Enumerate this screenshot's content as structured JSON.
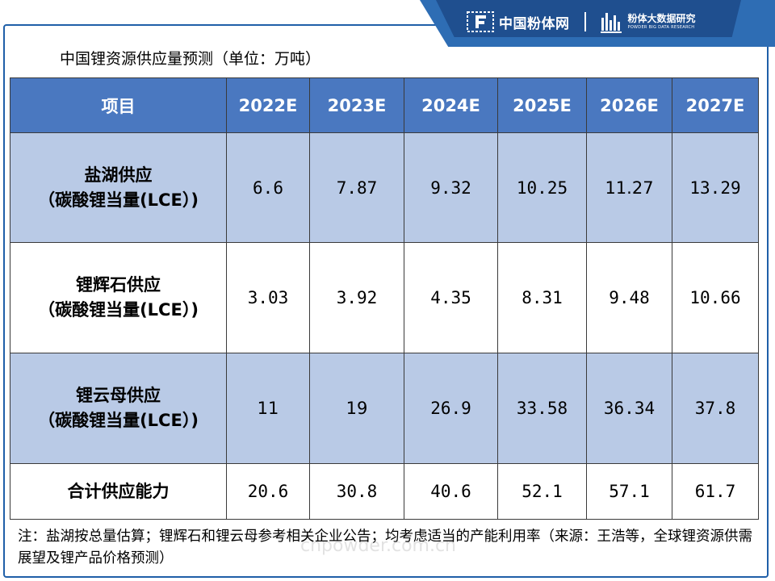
{
  "brand": {
    "logo1_text": "中国粉体网",
    "logo2_cn": "粉体大数据研究",
    "logo2_en": "POWDER BIG DATA RESEARCH"
  },
  "title": "中国锂资源供应量预测（单位：万吨）",
  "table": {
    "headers": [
      "项目",
      "2022E",
      "2023E",
      "2024E",
      "2025E",
      "2026E",
      "2027E"
    ],
    "rows": [
      {
        "label_line1": "盐湖供应",
        "label_line2": "（碳酸锂当量(LCE）)",
        "values": [
          "6.6",
          "7.87",
          "9.32",
          "10.25",
          "11.27",
          "13.29"
        ]
      },
      {
        "label_line1": "锂辉石供应",
        "label_line2": "（碳酸锂当量(LCE）)",
        "values": [
          "3.03",
          "3.92",
          "4.35",
          "8.31",
          "9.48",
          "10.66"
        ]
      },
      {
        "label_line1": "锂云母供应",
        "label_line2": "（碳酸锂当量(LCE）)",
        "values": [
          "11",
          "19",
          "26.9",
          "33.58",
          "36.34",
          "37.8"
        ]
      }
    ],
    "total": {
      "label": "合计供应能力",
      "values": [
        "20.6",
        "30.8",
        "40.6",
        "52.1",
        "57.1",
        "61.7"
      ]
    }
  },
  "watermark": "© cnpowder.com.cn",
  "watermark_small": "cnpowder.com.cn",
  "note": "注：盐湖按总量估算；锂辉石和锂云母参考相关企业公告；均考虑适当的产能利用率（来源：王浩等，全球锂资源供需展望及锂产品价格预测）"
}
